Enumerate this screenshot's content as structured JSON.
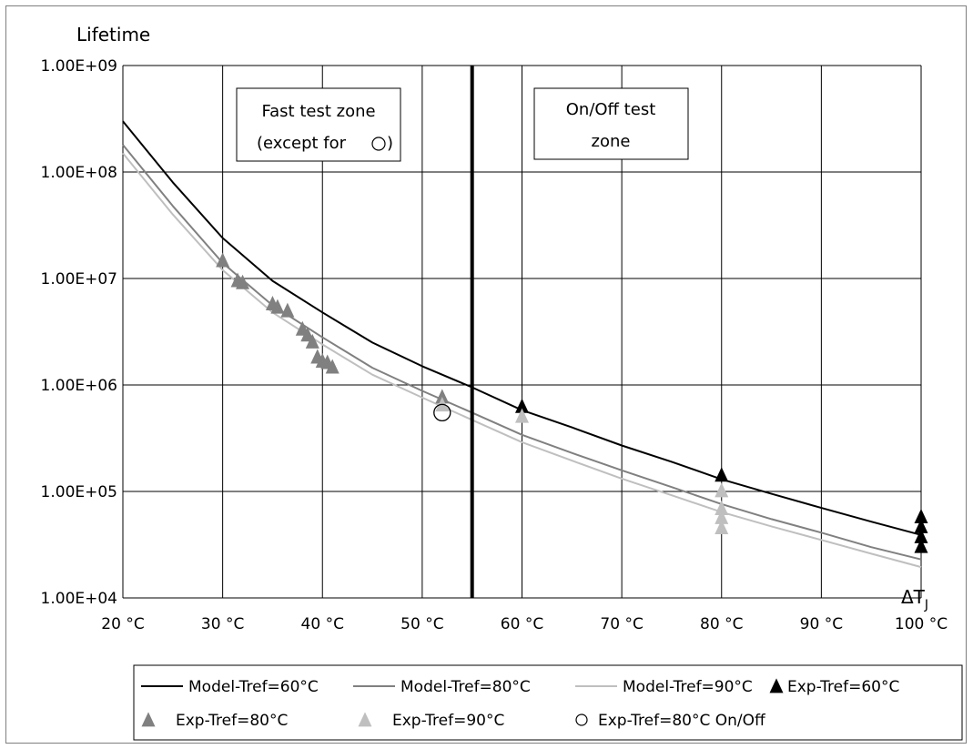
{
  "chart_data": {
    "type": "line",
    "title": "",
    "ylabel": "Lifetime",
    "xlabel": "ΔT",
    "xlabel_sub": "J",
    "y_scale": "log",
    "ylim": [
      10000,
      1000000000
    ],
    "xlim": [
      20,
      100
    ],
    "grid": true,
    "x_ticks": [
      {
        "value": 20,
        "label": "20 °C"
      },
      {
        "value": 30,
        "label": "30 °C"
      },
      {
        "value": 40,
        "label": "40 °C"
      },
      {
        "value": 50,
        "label": "50 °C"
      },
      {
        "value": 60,
        "label": "60 °C"
      },
      {
        "value": 70,
        "label": "70 °C"
      },
      {
        "value": 80,
        "label": "80 °C"
      },
      {
        "value": 90,
        "label": "90 °C"
      },
      {
        "value": 100,
        "label": "100 °C"
      }
    ],
    "y_ticks": [
      {
        "value": 1000000000,
        "label": "1.00E+09"
      },
      {
        "value": 100000000,
        "label": "1.00E+08"
      },
      {
        "value": 10000000,
        "label": "1.00E+07"
      },
      {
        "value": 1000000,
        "label": "1.00E+06"
      },
      {
        "value": 100000,
        "label": "1.00E+05"
      },
      {
        "value": 10000,
        "label": "1.00E+04"
      }
    ],
    "divider_x": 55,
    "annotations": [
      {
        "lines": [
          "Fast test zone",
          "(except for ",
          ")"
        ],
        "symbol": "circle"
      },
      {
        "lines": [
          "On/Off test",
          "zone"
        ]
      }
    ],
    "series": [
      {
        "name": "Model-Tref=60°C",
        "kind": "line",
        "color": "#000000",
        "x": [
          20,
          25,
          30,
          35,
          40,
          45,
          50,
          55,
          60,
          65,
          70,
          75,
          80,
          85,
          90,
          95,
          100
        ],
        "y": [
          300000000,
          80000000,
          24000000,
          9500000,
          4800000,
          2500000,
          1500000,
          950000,
          580000,
          400000,
          270000,
          190000,
          130000,
          95000,
          70000,
          52000,
          39000
        ]
      },
      {
        "name": "Model-Tref=80°C",
        "kind": "line",
        "color": "#808080",
        "x": [
          20,
          25,
          30,
          35,
          40,
          45,
          50,
          55,
          60,
          65,
          70,
          75,
          80,
          85,
          90,
          95,
          100
        ],
        "y": [
          180000000,
          48000000,
          14000000,
          5600000,
          2800000,
          1450000,
          880000,
          550000,
          340000,
          230000,
          158000,
          110000,
          76000,
          55000,
          41000,
          30000,
          23000
        ]
      },
      {
        "name": "Model-Tref=90°C",
        "kind": "line",
        "color": "#bfbfbf",
        "x": [
          20,
          25,
          30,
          35,
          40,
          45,
          50,
          55,
          60,
          65,
          70,
          75,
          80,
          85,
          90,
          95,
          100
        ],
        "y": [
          150000000,
          40000000,
          12000000,
          4800000,
          2400000,
          1250000,
          760000,
          470000,
          290000,
          195000,
          132000,
          92000,
          64000,
          47000,
          35000,
          26000,
          19500
        ]
      },
      {
        "name": "Exp-Tref=60°C",
        "kind": "marker",
        "marker": "triangle",
        "color": "#000000",
        "x": [
          60,
          80,
          100,
          100,
          100,
          100
        ],
        "y": [
          620000,
          140000,
          57000,
          46000,
          37000,
          30000
        ]
      },
      {
        "name": "Exp-Tref=80°C",
        "kind": "marker",
        "marker": "triangle",
        "color": "#808080",
        "x": [
          30,
          31.5,
          32,
          35,
          35.5,
          36.5,
          38,
          38.5,
          39,
          39.5,
          40,
          40.5,
          41,
          52
        ],
        "y": [
          14500000,
          9400000,
          9000000,
          5700000,
          5300000,
          4900000,
          3300000,
          2900000,
          2500000,
          1800000,
          1650000,
          1600000,
          1450000,
          760000
        ]
      },
      {
        "name": "Exp-Tref=90°C",
        "kind": "marker",
        "marker": "triangle",
        "color": "#bfbfbf",
        "x": [
          52,
          60,
          80,
          80,
          80,
          80
        ],
        "y": [
          640000,
          500000,
          100000,
          68000,
          56000,
          45000
        ]
      },
      {
        "name": "Exp-Tref=80°C On/Off",
        "kind": "marker",
        "marker": "circle",
        "color": "#000000",
        "x": [
          52
        ],
        "y": [
          550000
        ]
      }
    ],
    "legend": {
      "placement": "bottom",
      "row1": [
        "Model-Tref=60°C",
        "Model-Tref=80°C",
        "Model-Tref=90°C",
        "Exp-Tref=60°C"
      ],
      "row2": [
        "Exp-Tref=80°C",
        "Exp-Tref=90°C",
        "Exp-Tref=80°C On/Off"
      ]
    }
  }
}
